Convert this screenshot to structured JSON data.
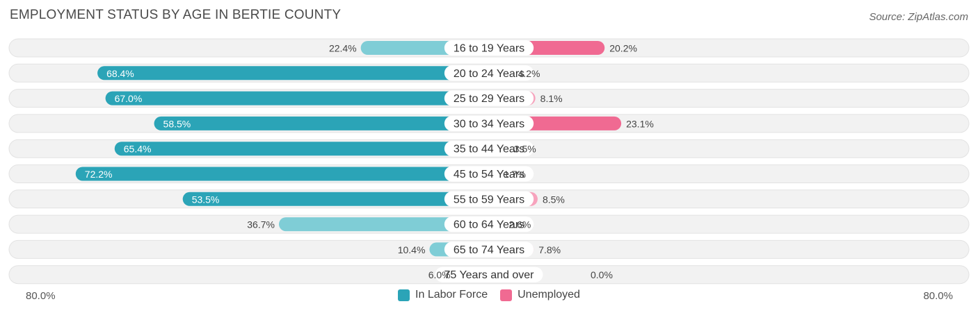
{
  "title": "EMPLOYMENT STATUS BY AGE IN BERTIE COUNTY",
  "source": "Source: ZipAtlas.com",
  "colors": {
    "labor_dark": "#2ba4b7",
    "labor_light": "#7fcdd6",
    "unemp_dark": "#f06a92",
    "unemp_light": "#f7a3bd"
  },
  "axis": {
    "left_label": "80.0%",
    "right_label": "80.0%"
  },
  "legend": {
    "labor_label": "In Labor Force",
    "unemp_label": "Unemployed"
  },
  "chart_data": {
    "type": "bar",
    "orientation": "horizontal-diverging",
    "title": "EMPLOYMENT STATUS BY AGE IN BERTIE COUNTY",
    "categories": [
      "16 to 19 Years",
      "20 to 24 Years",
      "25 to 29 Years",
      "30 to 34 Years",
      "35 to 44 Years",
      "45 to 54 Years",
      "55 to 59 Years",
      "60 to 64 Years",
      "65 to 74 Years",
      "75 Years and over"
    ],
    "series": [
      {
        "name": "In Labor Force",
        "values": [
          22.4,
          68.4,
          67.0,
          58.5,
          65.4,
          72.2,
          53.5,
          36.7,
          10.4,
          6.0
        ],
        "labels": [
          "22.4%",
          "68.4%",
          "67.0%",
          "58.5%",
          "65.4%",
          "72.2%",
          "53.5%",
          "36.7%",
          "10.4%",
          "6.0%"
        ]
      },
      {
        "name": "Unemployed",
        "values": [
          20.2,
          4.2,
          8.1,
          23.1,
          3.5,
          1.7,
          8.5,
          2.6,
          7.8,
          0.0
        ],
        "labels": [
          "20.2%",
          "4.2%",
          "8.1%",
          "23.1%",
          "3.5%",
          "1.7%",
          "8.5%",
          "2.6%",
          "7.8%",
          "0.0%"
        ]
      }
    ],
    "xlim": [
      -80,
      80
    ],
    "legend_position": "bottom-center",
    "grid": false
  }
}
